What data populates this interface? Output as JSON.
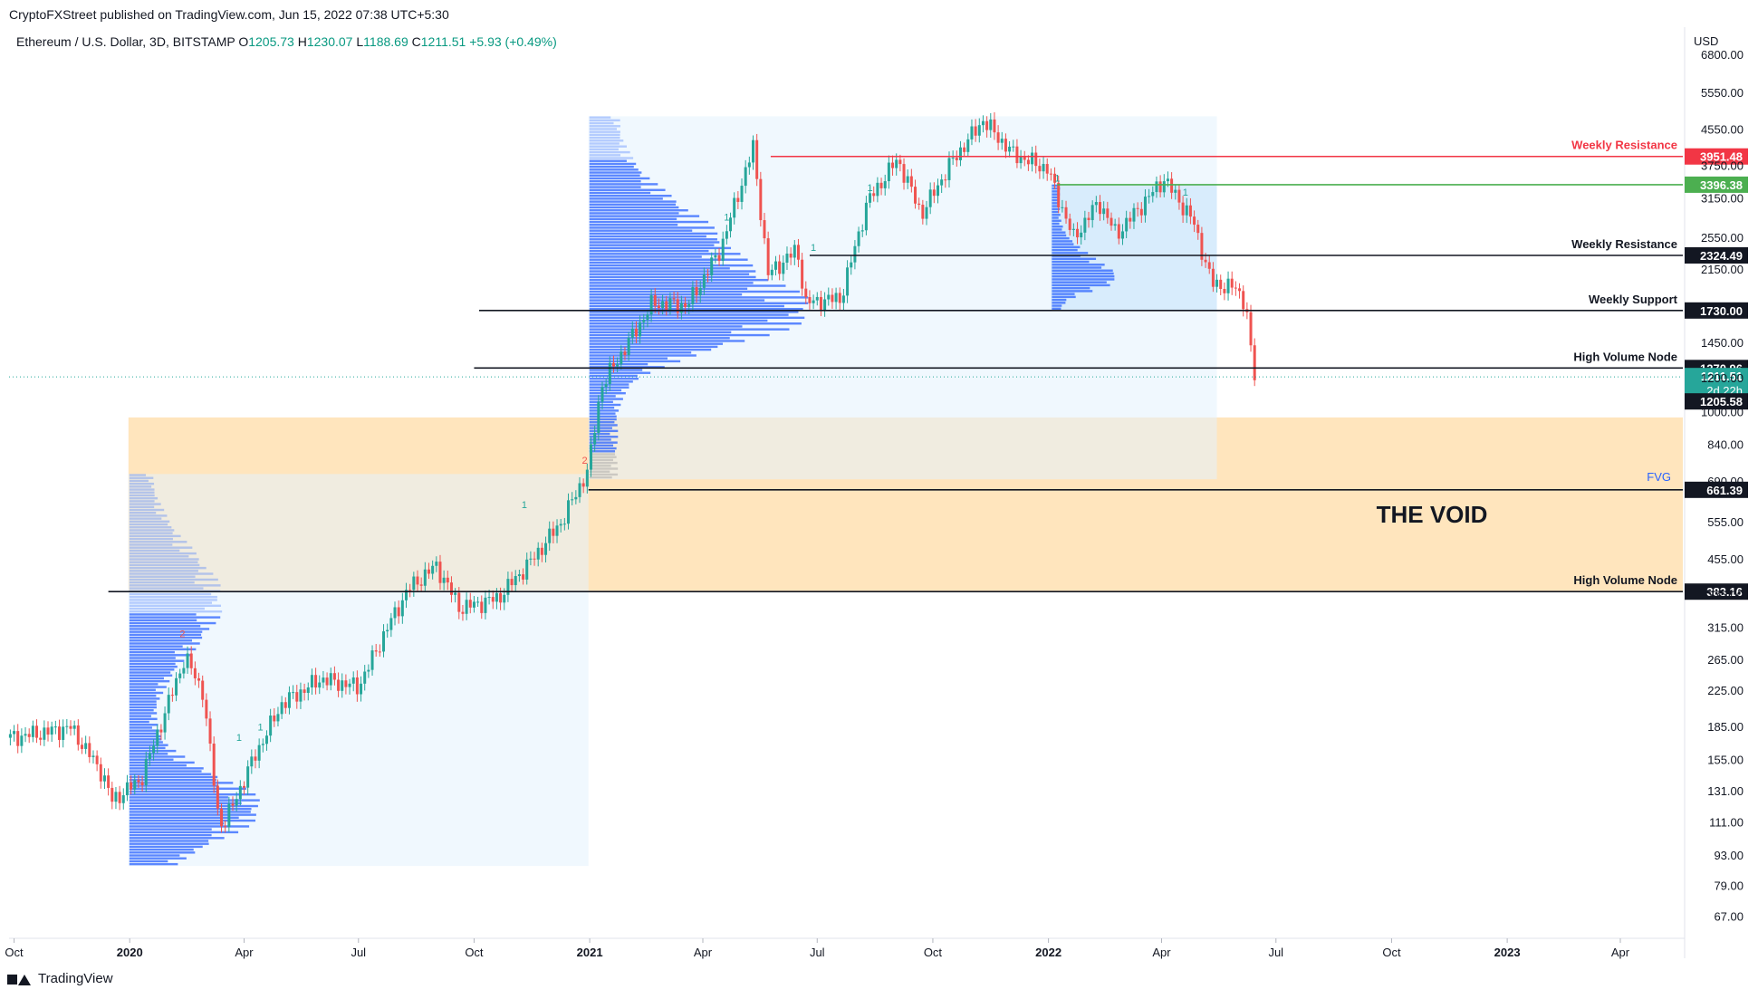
{
  "header": {
    "published": "CryptoFXStreet published on TradingView.com, Jun 15, 2022 07:38 UTC+5:30"
  },
  "legend": {
    "symbol": "Ethereum / U.S. Dollar, 3D, BITSTAMP",
    "o_label": "O",
    "o": "1205.73",
    "h_label": "H",
    "h": "1230.07",
    "l_label": "L",
    "l": "1188.69",
    "c_label": "C",
    "c": "1211.51",
    "chg": "+5.93 (+0.49%)"
  },
  "footer": {
    "brand": "TradingView"
  },
  "colors": {
    "up": "#26a69a",
    "down": "#ef5350",
    "profile": "#2962ff",
    "fvg_zone": "#ffe0b2",
    "range_box": "#e3f2fd",
    "weekly_resistance_red": "#f23645",
    "green_level": "#4caf50",
    "label_black": "#131722",
    "current_price": "#26a69a"
  },
  "chart_data": {
    "type": "candlestick",
    "instrument": "Ethereum / U.S. Dollar, 3D, BITSTAMP",
    "currency_label": "USD",
    "y_scale": "log",
    "ylim": [
      60,
      7000
    ],
    "y_ticks": [
      "6800.00",
      "5550.00",
      "4550.00",
      "3750.00",
      "3150.00",
      "2550.00",
      "2150.00",
      "1450.00",
      "1200.00",
      "1000.00",
      "840.00",
      "690.00",
      "555.00",
      "455.00",
      "375.00",
      "315.00",
      "265.00",
      "225.00",
      "185.00",
      "155.00",
      "131.00",
      "111.00",
      "93.00",
      "79.00",
      "67.00"
    ],
    "x_ticks": [
      {
        "label": "Oct",
        "date": "2019-10-01",
        "bold": false
      },
      {
        "label": "2020",
        "date": "2020-01-01",
        "bold": true
      },
      {
        "label": "Apr",
        "date": "2020-04-01",
        "bold": false
      },
      {
        "label": "Jul",
        "date": "2020-07-01",
        "bold": false
      },
      {
        "label": "Oct",
        "date": "2020-10-01",
        "bold": false
      },
      {
        "label": "2021",
        "date": "2021-01-01",
        "bold": true
      },
      {
        "label": "Apr",
        "date": "2021-04-01",
        "bold": false
      },
      {
        "label": "Jul",
        "date": "2021-07-01",
        "bold": false
      },
      {
        "label": "Oct",
        "date": "2021-10-01",
        "bold": false
      },
      {
        "label": "2022",
        "date": "2022-01-01",
        "bold": true
      },
      {
        "label": "Apr",
        "date": "2022-04-01",
        "bold": false
      },
      {
        "label": "Jul",
        "date": "2022-07-01",
        "bold": false
      },
      {
        "label": "Oct",
        "date": "2022-10-01",
        "bold": false
      },
      {
        "label": "2023",
        "date": "2023-01-01",
        "bold": true
      },
      {
        "label": "Apr",
        "date": "2023-04-01",
        "bold": false
      }
    ],
    "price_path": [
      [
        "2019-09-28",
        175
      ],
      [
        "2019-10-25",
        180
      ],
      [
        "2019-11-15",
        185
      ],
      [
        "2019-12-10",
        145
      ],
      [
        "2019-12-18",
        125
      ],
      [
        "2020-01-10",
        140
      ],
      [
        "2020-02-14",
        270
      ],
      [
        "2020-02-28",
        225
      ],
      [
        "2020-03-12",
        112
      ],
      [
        "2020-03-16",
        110
      ],
      [
        "2020-04-10",
        160
      ],
      [
        "2020-05-01",
        210
      ],
      [
        "2020-06-01",
        240
      ],
      [
        "2020-07-01",
        230
      ],
      [
        "2020-07-25",
        320
      ],
      [
        "2020-08-10",
        390
      ],
      [
        "2020-09-01",
        440
      ],
      [
        "2020-09-20",
        350
      ],
      [
        "2020-10-20",
        370
      ],
      [
        "2020-11-15",
        450
      ],
      [
        "2020-12-10",
        560
      ],
      [
        "2020-12-31",
        740
      ],
      [
        "2021-01-10",
        1150
      ],
      [
        "2021-02-20",
        1800
      ],
      [
        "2021-03-20",
        1780
      ],
      [
        "2021-04-15",
        2400
      ],
      [
        "2021-05-11",
        4150
      ],
      [
        "2021-05-23",
        2100
      ],
      [
        "2021-06-15",
        2400
      ],
      [
        "2021-06-22",
        1800
      ],
      [
        "2021-07-20",
        1850
      ],
      [
        "2021-08-10",
        3100
      ],
      [
        "2021-09-03",
        3900
      ],
      [
        "2021-09-22",
        2900
      ],
      [
        "2021-10-15",
        3800
      ],
      [
        "2021-11-10",
        4800
      ],
      [
        "2021-12-04",
        4000
      ],
      [
        "2021-12-31",
        3700
      ],
      [
        "2022-01-21",
        2550
      ],
      [
        "2022-02-10",
        3100
      ],
      [
        "2022-02-24",
        2600
      ],
      [
        "2022-04-03",
        3500
      ],
      [
        "2022-04-26",
        2800
      ],
      [
        "2022-05-11",
        2000
      ],
      [
        "2022-05-30",
        1950
      ],
      [
        "2022-06-07",
        1800
      ],
      [
        "2022-06-13",
        1220
      ],
      [
        "2022-06-15",
        1211.51
      ]
    ],
    "last_ohlc": {
      "open": 1205.73,
      "high": 1230.07,
      "low": 1188.69,
      "close": 1211.51,
      "change": "+5.93 (+0.49%)"
    },
    "levels": [
      {
        "price": 3951.48,
        "label": "Weekly Resistance",
        "tag": "3951.48",
        "color": "#f23645",
        "x_start": "2021-05-25"
      },
      {
        "price": 3396.38,
        "label": "",
        "tag": "3396.38",
        "color": "#4caf50",
        "x_start": "2022-01-08"
      },
      {
        "price": 2324.49,
        "label": "Weekly Resistance",
        "tag": "2324.49",
        "color": "#131722",
        "x_start": "2021-06-25"
      },
      {
        "price": 1730.0,
        "label": "Weekly Support",
        "tag": "1730.00",
        "color": "#131722",
        "x_start": "2020-10-05"
      },
      {
        "price": 1270.96,
        "label": "High Volume Node",
        "tag": "1270.96",
        "color": "#131722",
        "x_start": "2020-10-01"
      },
      {
        "price": 661.39,
        "label": "",
        "tag": "661.39",
        "color": "#131722",
        "x_start": "2020-12-31"
      },
      {
        "price": 383.16,
        "label": "High Volume Node",
        "tag": "383.16",
        "color": "#131722",
        "x_start": "2019-12-15"
      }
    ],
    "current_price": {
      "price": 1211.51,
      "tag": "1211.51",
      "countdown": "2d 22h"
    },
    "extra_tag": {
      "price": 1205.58,
      "tag": "1205.58"
    },
    "fvg_zone": {
      "label": "FVG",
      "from": 383.16,
      "to": 975,
      "x_start": "2019-12-31"
    },
    "annotation": "THE VOID",
    "volume_profiles": [
      {
        "x_start": "2019-12-31",
        "x_end": "2020-12-31",
        "low": 88,
        "high": 720
      },
      {
        "x_start": "2020-12-31",
        "x_end": "2022-05-15",
        "low": 700,
        "high": 4900
      },
      {
        "x_start": "2022-01-03",
        "x_end": "2022-05-15",
        "low": 1730,
        "high": 3400
      }
    ],
    "td_markers": [
      {
        "date": "2020-02-12",
        "price": 300,
        "text": "2"
      },
      {
        "date": "2020-03-28",
        "price": 172,
        "text": "1"
      },
      {
        "date": "2020-04-14",
        "price": 182,
        "text": "1"
      },
      {
        "date": "2020-11-10",
        "price": 600,
        "text": "1"
      },
      {
        "date": "2020-12-28",
        "price": 760,
        "text": "2"
      },
      {
        "date": "2021-04-20",
        "price": 2800,
        "text": "1"
      },
      {
        "date": "2021-06-28",
        "price": 2380,
        "text": "1"
      },
      {
        "date": "2021-08-12",
        "price": 3280,
        "text": "1"
      },
      {
        "date": "2022-01-08",
        "price": 3450,
        "text": "1"
      },
      {
        "date": "2022-04-20",
        "price": 3200,
        "text": "1"
      }
    ]
  }
}
